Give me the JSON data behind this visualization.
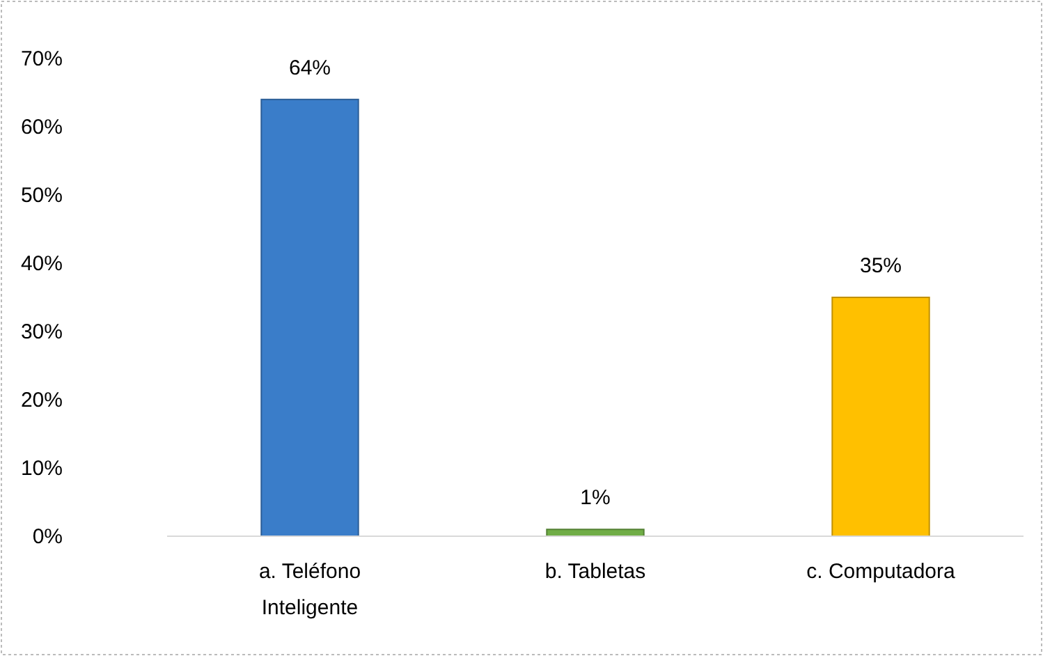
{
  "chart_data": {
    "type": "bar",
    "categories": [
      "a. Teléfono Inteligente",
      "b. Tabletas",
      "c. Computadora"
    ],
    "values": [
      64,
      1,
      35
    ],
    "colors": [
      "#3a7dc9",
      "#70ad47",
      "#ffc000"
    ],
    "value_labels": [
      "64%",
      "1%",
      "35%"
    ],
    "ylim": [
      0,
      70
    ],
    "yticks": [
      {
        "value": 0,
        "label": "0%"
      },
      {
        "value": 10,
        "label": "10%"
      },
      {
        "value": 20,
        "label": "20%"
      },
      {
        "value": 30,
        "label": "30%"
      },
      {
        "value": 40,
        "label": "40%"
      },
      {
        "value": 50,
        "label": "50%"
      },
      {
        "value": 60,
        "label": "60%"
      },
      {
        "value": 70,
        "label": "70%"
      }
    ],
    "grid": false
  }
}
